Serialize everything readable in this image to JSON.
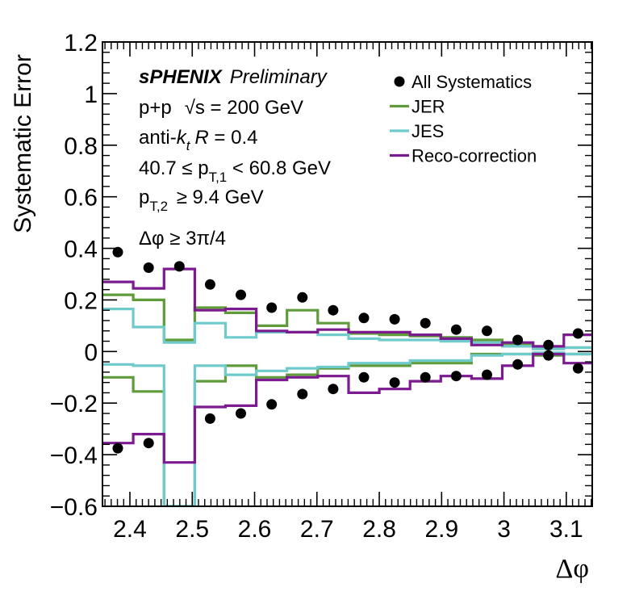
{
  "chart_data": {
    "type": "step",
    "xlabel": "Δφ",
    "ylabel": "Systematic Error",
    "xlim": [
      2.356,
      3.1416
    ],
    "ylim": [
      -0.6,
      1.2
    ],
    "x_ticks": [
      2.4,
      2.5,
      2.6,
      2.7,
      2.8,
      2.9,
      3.0,
      3.1
    ],
    "x_tick_labels": [
      "2.4",
      "2.5",
      "2.6",
      "2.7",
      "2.8",
      "2.9",
      "3",
      "3.1"
    ],
    "y_ticks": [
      -0.6,
      -0.4,
      -0.2,
      0,
      0.2,
      0.4,
      0.6,
      0.8,
      1,
      1.2
    ],
    "y_tick_labels": [
      "−0.6",
      "−0.4",
      "−0.2",
      "0",
      "0.2",
      "0.4",
      "0.6",
      "0.8",
      "1",
      "1.2"
    ],
    "bin_edges": [
      2.356,
      2.4053,
      2.4547,
      2.504,
      2.5533,
      2.6027,
      2.652,
      2.7013,
      2.7507,
      2.8,
      2.8493,
      2.8987,
      2.948,
      2.9973,
      3.0467,
      3.096,
      3.1416
    ],
    "grid": false,
    "legend_position": "top-right",
    "annotations": {
      "experiment": "sPHENIX",
      "status": "Preliminary",
      "collision_pre": "p+p",
      "sqrt_symbol": "√",
      "energy": "s = 200 GeV",
      "algo_pre": "anti-",
      "algo_k": "k",
      "algo_k_sub": "t",
      "algo_R": "R",
      "algo_post": " = 0.4",
      "pt1_pre": "40.7 ≤ p",
      "pt1_sub": "T,1",
      "pt1_post": " < 60.8 GeV",
      "pt2_pre": "p",
      "pt2_sub": "T,2",
      "pt2_post": " ≥ 9.4 GeV",
      "dphi_cut": "Δφ ≥ 3π/4"
    },
    "series": [
      {
        "name": "All Systematics",
        "style": "markers",
        "color": "#000000",
        "upper": [
          0.385,
          0.325,
          0.33,
          0.26,
          0.22,
          0.17,
          0.21,
          0.16,
          0.13,
          0.125,
          0.11,
          0.085,
          0.08,
          0.045,
          0.025,
          0.07
        ],
        "lower": [
          -0.375,
          -0.355,
          null,
          -0.26,
          -0.24,
          -0.205,
          -0.165,
          -0.145,
          -0.1,
          -0.12,
          -0.1,
          -0.095,
          -0.09,
          -0.05,
          -0.015,
          -0.065
        ]
      },
      {
        "name": "JER",
        "style": "step",
        "color": "#5f9a3b",
        "upper": [
          0.22,
          0.2,
          0.045,
          0.17,
          0.15,
          0.1,
          0.16,
          0.11,
          0.07,
          0.065,
          0.06,
          0.055,
          0.045,
          0.03,
          0.015,
          0.015
        ],
        "lower": [
          -0.1,
          -0.155,
          -0.6,
          -0.115,
          -0.055,
          -0.1,
          -0.09,
          -0.065,
          -0.055,
          -0.055,
          -0.045,
          -0.045,
          -0.01,
          -0.01,
          -0.015,
          -0.01
        ]
      },
      {
        "name": "JES",
        "style": "step",
        "color": "#6fcbcb",
        "upper": [
          0.165,
          0.095,
          0.035,
          0.11,
          0.055,
          0.075,
          0.075,
          0.065,
          0.05,
          0.045,
          0.045,
          0.04,
          0.035,
          0.02,
          0.01,
          0.015
        ],
        "lower": [
          -0.05,
          -0.055,
          -0.6,
          -0.055,
          -0.09,
          -0.075,
          -0.065,
          -0.06,
          -0.045,
          -0.045,
          -0.035,
          -0.035,
          -0.015,
          -0.01,
          -0.005,
          -0.01
        ]
      },
      {
        "name": "Reco-correction",
        "style": "step",
        "color": "#7b1b8f",
        "upper": [
          0.27,
          0.245,
          0.32,
          0.16,
          0.165,
          0.08,
          0.075,
          0.085,
          0.075,
          0.075,
          0.065,
          0.05,
          0.025,
          0.035,
          0.02,
          0.065
        ],
        "lower": [
          -0.355,
          -0.32,
          -0.43,
          -0.215,
          -0.21,
          -0.11,
          -0.1,
          -0.095,
          -0.16,
          -0.145,
          -0.115,
          -0.095,
          -0.105,
          -0.055,
          -0.01,
          -0.045
        ]
      }
    ]
  }
}
